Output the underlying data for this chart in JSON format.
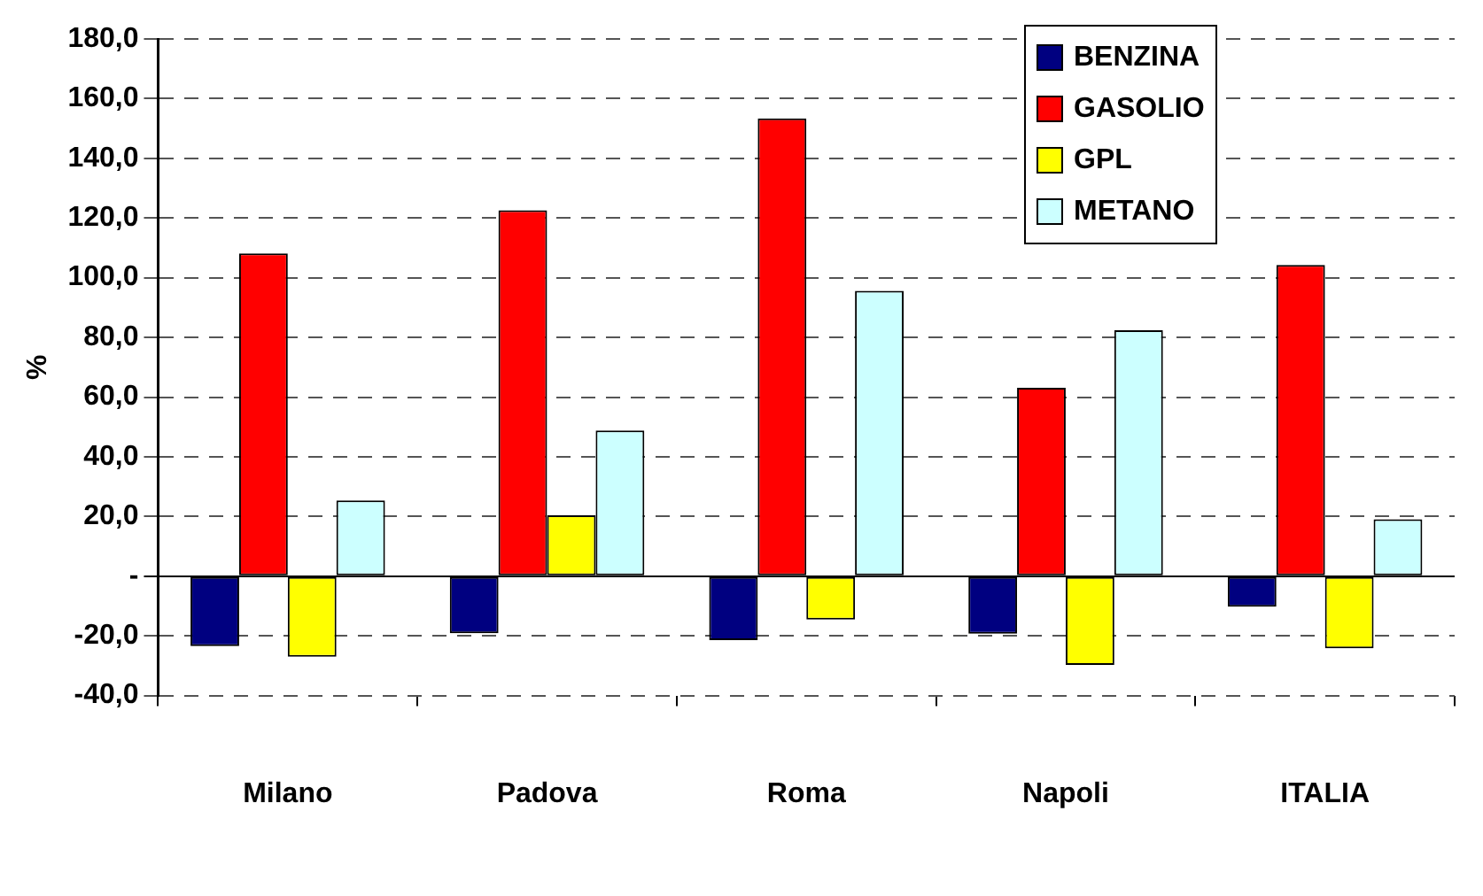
{
  "chart_data": {
    "type": "bar",
    "ylabel": "%",
    "categories": [
      "Milano",
      "Padova",
      "Roma",
      "Napoli",
      "ITALIA"
    ],
    "series": [
      {
        "name": "BENZINA",
        "color": "#000080",
        "values": [
          -23.4,
          -19.1,
          -21.4,
          -19.3,
          -10.2
        ]
      },
      {
        "name": "GASOLIO",
        "color": "#ff0000",
        "values": [
          108.1,
          122.6,
          153.4,
          63.1,
          104.3
        ]
      },
      {
        "name": "GPL",
        "color": "#ffff00",
        "values": [
          -27.0,
          20.4,
          -14.5,
          -29.7,
          -24.2
        ]
      },
      {
        "name": "METANO",
        "color": "#ccffff",
        "values": [
          25.4,
          48.8,
          95.6,
          82.4,
          19.1
        ]
      }
    ],
    "ylim": [
      -40,
      180
    ],
    "yticks": [
      {
        "value": -40,
        "label": "-40,0"
      },
      {
        "value": -20,
        "label": "-20,0"
      },
      {
        "value": 0,
        "label": "-"
      },
      {
        "value": 20,
        "label": "20,0"
      },
      {
        "value": 40,
        "label": "40,0"
      },
      {
        "value": 60,
        "label": "60,0"
      },
      {
        "value": 80,
        "label": "80,0"
      },
      {
        "value": 100,
        "label": "100,0"
      },
      {
        "value": 120,
        "label": "120,0"
      },
      {
        "value": 140,
        "label": "140,0"
      },
      {
        "value": 160,
        "label": "160,0"
      },
      {
        "value": 180,
        "label": "180,0"
      }
    ],
    "grid": "y",
    "legend": "top right"
  }
}
